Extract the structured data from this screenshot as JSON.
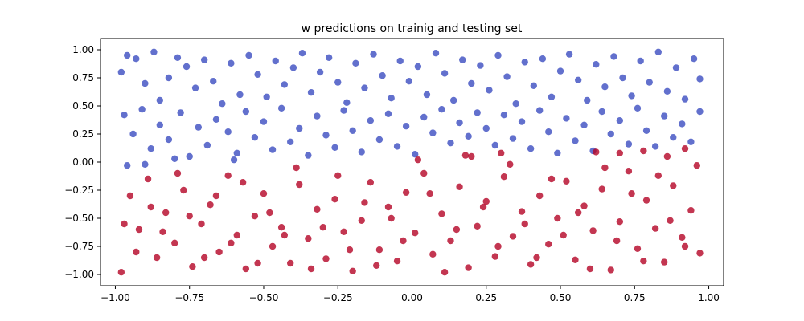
{
  "chart_data": {
    "type": "scatter",
    "title": "w predictions on trainig and testing set",
    "xlabel": "",
    "ylabel": "",
    "xlim": [
      -1.05,
      1.05
    ],
    "ylim": [
      -1.1,
      1.1
    ],
    "x_ticks": [
      "−1.00",
      "−0.75",
      "−0.50",
      "−0.25",
      "0.00",
      "0.25",
      "0.50",
      "0.75",
      "1.00"
    ],
    "x_tick_values": [
      -1.0,
      -0.75,
      -0.5,
      -0.25,
      0.0,
      0.25,
      0.5,
      0.75,
      1.0
    ],
    "y_ticks": [
      "−1.00",
      "−0.75",
      "−0.50",
      "−0.25",
      "0.00",
      "0.25",
      "0.50",
      "0.75",
      "1.00"
    ],
    "y_tick_values": [
      -1.0,
      -0.75,
      -0.5,
      -0.25,
      0.0,
      0.25,
      0.5,
      0.75,
      1.0
    ],
    "grid": false,
    "colors": {
      "class_positive": "#3b4cc0",
      "class_negative": "#b40426"
    },
    "series": [
      {
        "color": "#3b4cc0",
        "points": [
          [
            -0.98,
            0.8
          ],
          [
            -0.96,
            0.95
          ],
          [
            -0.93,
            0.92
          ],
          [
            -0.9,
            0.7
          ],
          [
            -0.87,
            0.98
          ],
          [
            -0.85,
            0.55
          ],
          [
            -0.82,
            0.75
          ],
          [
            -0.79,
            0.93
          ],
          [
            -0.76,
            0.85
          ],
          [
            -0.73,
            0.66
          ],
          [
            -0.7,
            0.91
          ],
          [
            -0.67,
            0.72
          ],
          [
            -0.64,
            0.52
          ],
          [
            -0.61,
            0.88
          ],
          [
            -0.58,
            0.6
          ],
          [
            -0.55,
            0.95
          ],
          [
            -0.52,
            0.78
          ],
          [
            -0.49,
            0.58
          ],
          [
            -0.46,
            0.9
          ],
          [
            -0.43,
            0.69
          ],
          [
            -0.4,
            0.84
          ],
          [
            -0.37,
            0.97
          ],
          [
            -0.34,
            0.62
          ],
          [
            -0.31,
            0.8
          ],
          [
            -0.28,
            0.93
          ],
          [
            -0.25,
            0.71
          ],
          [
            -0.22,
            0.53
          ],
          [
            -0.19,
            0.88
          ],
          [
            -0.16,
            0.66
          ],
          [
            -0.13,
            0.96
          ],
          [
            -0.1,
            0.77
          ],
          [
            -0.07,
            0.57
          ],
          [
            -0.04,
            0.9
          ],
          [
            -0.01,
            0.72
          ],
          [
            0.02,
            0.85
          ],
          [
            0.05,
            0.6
          ],
          [
            0.08,
            0.97
          ],
          [
            0.11,
            0.79
          ],
          [
            0.14,
            0.55
          ],
          [
            0.17,
            0.91
          ],
          [
            0.2,
            0.7
          ],
          [
            0.23,
            0.86
          ],
          [
            0.26,
            0.64
          ],
          [
            0.29,
            0.95
          ],
          [
            0.32,
            0.76
          ],
          [
            0.35,
            0.52
          ],
          [
            0.38,
            0.89
          ],
          [
            0.41,
            0.68
          ],
          [
            0.44,
            0.92
          ],
          [
            0.47,
            0.58
          ],
          [
            0.5,
            0.81
          ],
          [
            0.53,
            0.96
          ],
          [
            0.56,
            0.73
          ],
          [
            0.59,
            0.55
          ],
          [
            0.62,
            0.87
          ],
          [
            0.65,
            0.67
          ],
          [
            0.68,
            0.94
          ],
          [
            0.71,
            0.75
          ],
          [
            0.74,
            0.59
          ],
          [
            0.77,
            0.9
          ],
          [
            0.8,
            0.71
          ],
          [
            0.83,
            0.98
          ],
          [
            0.86,
            0.63
          ],
          [
            0.89,
            0.84
          ],
          [
            0.92,
            0.56
          ],
          [
            0.95,
            0.92
          ],
          [
            0.97,
            0.74
          ],
          [
            -0.97,
            0.42
          ],
          [
            -0.94,
            0.25
          ],
          [
            -0.91,
            0.47
          ],
          [
            -0.88,
            0.12
          ],
          [
            -0.85,
            0.33
          ],
          [
            -0.82,
            0.2
          ],
          [
            -0.78,
            0.44
          ],
          [
            -0.75,
            0.05
          ],
          [
            -0.72,
            0.31
          ],
          [
            -0.69,
            0.15
          ],
          [
            -0.66,
            0.38
          ],
          [
            -0.62,
            0.27
          ],
          [
            -0.59,
            0.08
          ],
          [
            -0.56,
            0.45
          ],
          [
            -0.53,
            0.22
          ],
          [
            -0.5,
            0.36
          ],
          [
            -0.47,
            0.11
          ],
          [
            -0.44,
            0.48
          ],
          [
            -0.41,
            0.18
          ],
          [
            -0.38,
            0.3
          ],
          [
            -0.35,
            0.06
          ],
          [
            -0.32,
            0.41
          ],
          [
            -0.29,
            0.24
          ],
          [
            -0.26,
            0.13
          ],
          [
            -0.23,
            0.46
          ],
          [
            -0.2,
            0.28
          ],
          [
            -0.17,
            0.09
          ],
          [
            -0.14,
            0.37
          ],
          [
            -0.11,
            0.2
          ],
          [
            -0.08,
            0.43
          ],
          [
            -0.05,
            0.14
          ],
          [
            -0.02,
            0.32
          ],
          [
            0.01,
            0.07
          ],
          [
            0.04,
            0.4
          ],
          [
            0.07,
            0.26
          ],
          [
            0.1,
            0.47
          ],
          [
            0.13,
            0.17
          ],
          [
            0.16,
            0.35
          ],
          [
            0.19,
            0.23
          ],
          [
            0.22,
            0.44
          ],
          [
            0.25,
            0.3
          ],
          [
            0.28,
            0.15
          ],
          [
            0.31,
            0.42
          ],
          [
            0.34,
            0.21
          ],
          [
            0.37,
            0.36
          ],
          [
            0.4,
            0.12
          ],
          [
            0.43,
            0.46
          ],
          [
            0.46,
            0.27
          ],
          [
            0.49,
            0.08
          ],
          [
            0.52,
            0.39
          ],
          [
            0.55,
            0.19
          ],
          [
            0.58,
            0.33
          ],
          [
            0.61,
            0.1
          ],
          [
            0.64,
            0.45
          ],
          [
            0.67,
            0.25
          ],
          [
            0.7,
            0.37
          ],
          [
            0.73,
            0.16
          ],
          [
            0.76,
            0.48
          ],
          [
            0.79,
            0.28
          ],
          [
            0.82,
            0.14
          ],
          [
            0.85,
            0.41
          ],
          [
            0.88,
            0.22
          ],
          [
            0.91,
            0.34
          ],
          [
            0.94,
            0.18
          ],
          [
            0.97,
            0.45
          ],
          [
            -0.96,
            -0.03
          ],
          [
            -0.9,
            -0.02
          ],
          [
            -0.8,
            0.03
          ],
          [
            -0.6,
            0.02
          ]
        ]
      },
      {
        "color": "#b40426",
        "points": [
          [
            -0.98,
            -0.98
          ],
          [
            -0.95,
            -0.3
          ],
          [
            -0.92,
            -0.6
          ],
          [
            -0.89,
            -0.15
          ],
          [
            -0.86,
            -0.85
          ],
          [
            -0.83,
            -0.45
          ],
          [
            -0.8,
            -0.72
          ],
          [
            -0.77,
            -0.25
          ],
          [
            -0.74,
            -0.93
          ],
          [
            -0.71,
            -0.55
          ],
          [
            -0.68,
            -0.38
          ],
          [
            -0.65,
            -0.8
          ],
          [
            -0.62,
            -0.12
          ],
          [
            -0.59,
            -0.65
          ],
          [
            -0.56,
            -0.95
          ],
          [
            -0.53,
            -0.48
          ],
          [
            -0.5,
            -0.28
          ],
          [
            -0.47,
            -0.75
          ],
          [
            -0.44,
            -0.58
          ],
          [
            -0.41,
            -0.9
          ],
          [
            -0.38,
            -0.2
          ],
          [
            -0.35,
            -0.68
          ],
          [
            -0.32,
            -0.42
          ],
          [
            -0.29,
            -0.86
          ],
          [
            -0.26,
            -0.33
          ],
          [
            -0.23,
            -0.62
          ],
          [
            -0.2,
            -0.97
          ],
          [
            -0.17,
            -0.52
          ],
          [
            -0.14,
            -0.18
          ],
          [
            -0.11,
            -0.78
          ],
          [
            -0.08,
            -0.4
          ],
          [
            -0.05,
            -0.88
          ],
          [
            -0.02,
            -0.27
          ],
          [
            0.01,
            -0.63
          ],
          [
            0.04,
            -0.1
          ],
          [
            0.07,
            -0.82
          ],
          [
            0.1,
            -0.46
          ],
          [
            0.13,
            -0.7
          ],
          [
            0.16,
            -0.22
          ],
          [
            0.19,
            -0.94
          ],
          [
            0.22,
            -0.57
          ],
          [
            0.25,
            -0.35
          ],
          [
            0.28,
            -0.84
          ],
          [
            0.31,
            -0.13
          ],
          [
            0.34,
            -0.66
          ],
          [
            0.37,
            -0.44
          ],
          [
            0.4,
            -0.91
          ],
          [
            0.43,
            -0.3
          ],
          [
            0.46,
            -0.73
          ],
          [
            0.49,
            -0.5
          ],
          [
            0.52,
            -0.17
          ],
          [
            0.55,
            -0.87
          ],
          [
            0.58,
            -0.39
          ],
          [
            0.61,
            -0.61
          ],
          [
            0.64,
            -0.24
          ],
          [
            0.67,
            -0.96
          ],
          [
            0.7,
            -0.53
          ],
          [
            0.73,
            -0.08
          ],
          [
            0.76,
            -0.77
          ],
          [
            0.79,
            -0.34
          ],
          [
            0.82,
            -0.59
          ],
          [
            0.85,
            -0.89
          ],
          [
            0.88,
            -0.21
          ],
          [
            0.91,
            -0.67
          ],
          [
            0.94,
            -0.43
          ],
          [
            0.97,
            -0.81
          ],
          [
            -0.97,
            -0.55
          ],
          [
            -0.93,
            -0.8
          ],
          [
            -0.88,
            -0.4
          ],
          [
            -0.84,
            -0.62
          ],
          [
            -0.79,
            -0.1
          ],
          [
            -0.75,
            -0.48
          ],
          [
            -0.7,
            -0.85
          ],
          [
            -0.66,
            -0.3
          ],
          [
            -0.61,
            -0.72
          ],
          [
            -0.57,
            -0.18
          ],
          [
            -0.52,
            -0.9
          ],
          [
            -0.48,
            -0.45
          ],
          [
            -0.43,
            -0.65
          ],
          [
            -0.39,
            -0.05
          ],
          [
            -0.34,
            -0.95
          ],
          [
            -0.3,
            -0.58
          ],
          [
            -0.25,
            -0.12
          ],
          [
            -0.21,
            -0.78
          ],
          [
            -0.16,
            -0.36
          ],
          [
            -0.12,
            -0.92
          ],
          [
            -0.07,
            -0.5
          ],
          [
            -0.03,
            -0.7
          ],
          [
            0.02,
            0.02
          ],
          [
            0.06,
            -0.28
          ],
          [
            0.11,
            -0.98
          ],
          [
            0.15,
            -0.6
          ],
          [
            0.2,
            0.05
          ],
          [
            0.24,
            -0.4
          ],
          [
            0.29,
            -0.75
          ],
          [
            0.33,
            -0.02
          ],
          [
            0.38,
            -0.55
          ],
          [
            0.42,
            -0.85
          ],
          [
            0.47,
            -0.15
          ],
          [
            0.51,
            -0.65
          ],
          [
            0.56,
            -0.45
          ],
          [
            0.6,
            -0.95
          ],
          [
            0.65,
            -0.05
          ],
          [
            0.69,
            -0.7
          ],
          [
            0.74,
            -0.28
          ],
          [
            0.78,
            -0.88
          ],
          [
            0.83,
            -0.12
          ],
          [
            0.87,
            -0.52
          ],
          [
            0.92,
            -0.75
          ],
          [
            0.96,
            -0.03
          ],
          [
            0.7,
            0.08
          ],
          [
            0.78,
            0.1
          ],
          [
            0.86,
            0.05
          ],
          [
            0.92,
            0.12
          ],
          [
            0.3,
            0.08
          ],
          [
            0.18,
            0.06
          ],
          [
            0.62,
            0.09
          ]
        ]
      }
    ]
  }
}
